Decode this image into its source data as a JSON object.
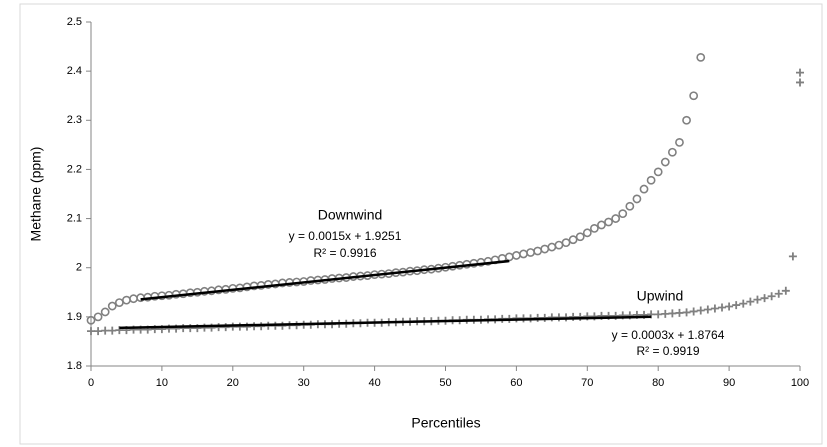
{
  "chart_data": {
    "type": "scatter",
    "ylabel": "Methane (ppm)",
    "xlabel": "Percentiles",
    "xlim": [
      0,
      100
    ],
    "ylim": [
      1.8,
      2.5
    ],
    "xticks": [
      0,
      10,
      20,
      30,
      40,
      50,
      60,
      70,
      80,
      90,
      100
    ],
    "yticks": [
      1.8,
      1.9,
      2,
      2.1,
      2.2,
      2.3,
      2.4,
      2.5
    ],
    "grid": false,
    "series": [
      {
        "name": "Downwind",
        "marker": "circle",
        "color": "#808080",
        "x": [
          0,
          1,
          2,
          3,
          4,
          5,
          6,
          7,
          8,
          9,
          10,
          11,
          12,
          13,
          14,
          15,
          16,
          17,
          18,
          19,
          20,
          21,
          22,
          23,
          24,
          25,
          26,
          27,
          28,
          29,
          30,
          31,
          32,
          33,
          34,
          35,
          36,
          37,
          38,
          39,
          40,
          41,
          42,
          43,
          44,
          45,
          46,
          47,
          48,
          49,
          50,
          51,
          52,
          53,
          54,
          55,
          56,
          57,
          58,
          59,
          60,
          61,
          62,
          63,
          64,
          65,
          66,
          67,
          68,
          69,
          70,
          71,
          72,
          73,
          74,
          75,
          76,
          77,
          78,
          79,
          80,
          81,
          82,
          83,
          84,
          85,
          86
        ],
        "values": [
          1.893,
          1.9,
          1.91,
          1.922,
          1.929,
          1.934,
          1.937,
          1.939,
          1.94,
          1.942,
          1.943,
          1.944,
          1.946,
          1.947,
          1.949,
          1.95,
          1.952,
          1.953,
          1.955,
          1.956,
          1.958,
          1.959,
          1.961,
          1.963,
          1.964,
          1.966,
          1.967,
          1.969,
          1.97,
          1.971,
          1.972,
          1.974,
          1.975,
          1.976,
          1.978,
          1.979,
          1.98,
          1.982,
          1.983,
          1.984,
          1.986,
          1.987,
          1.988,
          1.99,
          1.991,
          1.993,
          1.994,
          1.996,
          1.997,
          1.999,
          2.001,
          2.003,
          2.005,
          2.007,
          2.009,
          2.011,
          2.013,
          2.016,
          2.019,
          2.022,
          2.025,
          2.028,
          2.031,
          2.034,
          2.038,
          2.042,
          2.046,
          2.051,
          2.057,
          2.063,
          2.071,
          2.08,
          2.087,
          2.093,
          2.1,
          2.11,
          2.125,
          2.14,
          2.16,
          2.178,
          2.195,
          2.215,
          2.235,
          2.255,
          2.3,
          2.35,
          2.428
        ]
      },
      {
        "name": "Upwind",
        "marker": "plus",
        "color": "#808080",
        "x": [
          0,
          1,
          2,
          3,
          4,
          5,
          6,
          7,
          8,
          9,
          10,
          11,
          12,
          13,
          14,
          15,
          16,
          17,
          18,
          19,
          20,
          21,
          22,
          23,
          24,
          25,
          26,
          27,
          28,
          29,
          30,
          31,
          32,
          33,
          34,
          35,
          36,
          37,
          38,
          39,
          40,
          41,
          42,
          43,
          44,
          45,
          46,
          47,
          48,
          49,
          50,
          51,
          52,
          53,
          54,
          55,
          56,
          57,
          58,
          59,
          60,
          61,
          62,
          63,
          64,
          65,
          66,
          67,
          68,
          69,
          70,
          71,
          72,
          73,
          74,
          75,
          76,
          77,
          78,
          79,
          80,
          81,
          82,
          83,
          84,
          85,
          86,
          87,
          88,
          89,
          90,
          91,
          92,
          93,
          94,
          95,
          96,
          97,
          98,
          99,
          100,
          100
        ],
        "values": [
          1.871,
          1.871,
          1.872,
          1.872,
          1.873,
          1.873,
          1.874,
          1.874,
          1.874,
          1.875,
          1.875,
          1.876,
          1.876,
          1.877,
          1.877,
          1.877,
          1.878,
          1.878,
          1.879,
          1.879,
          1.88,
          1.88,
          1.88,
          1.881,
          1.881,
          1.882,
          1.882,
          1.882,
          1.883,
          1.883,
          1.884,
          1.884,
          1.885,
          1.885,
          1.885,
          1.886,
          1.886,
          1.887,
          1.887,
          1.888,
          1.888,
          1.888,
          1.889,
          1.889,
          1.89,
          1.89,
          1.891,
          1.891,
          1.891,
          1.892,
          1.892,
          1.893,
          1.893,
          1.894,
          1.894,
          1.894,
          1.895,
          1.895,
          1.896,
          1.896,
          1.897,
          1.897,
          1.897,
          1.898,
          1.898,
          1.899,
          1.899,
          1.899,
          1.9,
          1.9,
          1.901,
          1.901,
          1.902,
          1.902,
          1.902,
          1.903,
          1.903,
          1.904,
          1.904,
          1.905,
          1.905,
          1.906,
          1.907,
          1.908,
          1.909,
          1.911,
          1.913,
          1.915,
          1.917,
          1.919,
          1.921,
          1.924,
          1.927,
          1.931,
          1.935,
          1.938,
          1.942,
          1.947,
          1.953,
          2.023,
          2.377,
          2.397
        ]
      }
    ],
    "trendlines": [
      {
        "color": "#000000",
        "x": [
          7,
          59
        ],
        "values": [
          1.9356,
          2.0136
        ]
      },
      {
        "color": "#000000",
        "x": [
          4,
          79
        ],
        "values": [
          1.8776,
          1.9001
        ]
      }
    ],
    "annotations": [
      "Downwind",
      "y = 0.0015x + 1.9251",
      "R² = 0.9916",
      "Upwind",
      "y = 0.0003x + 1.8764",
      "R² = 0.9919"
    ]
  }
}
